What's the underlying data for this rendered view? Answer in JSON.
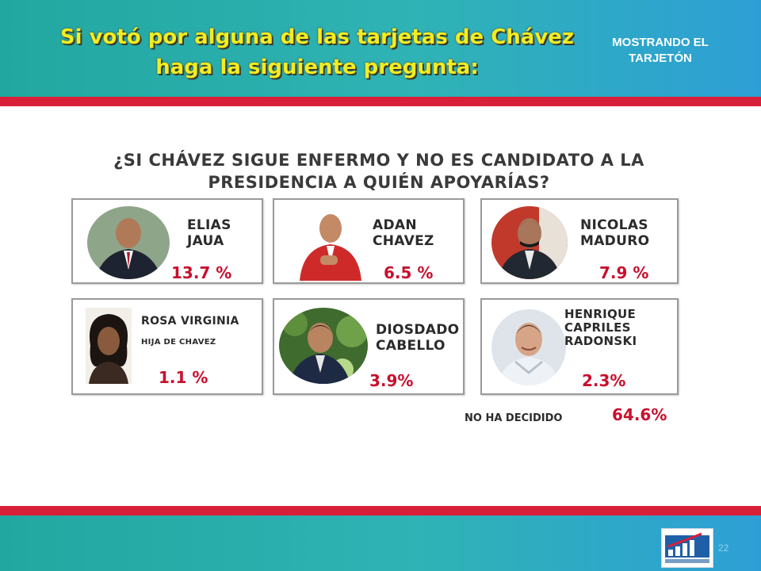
{
  "header": {
    "title": "Si votó por alguna de las tarjetas de Chávez haga la siguiente pregunta:",
    "badge": "MOSTRANDO EL TARJETÓN"
  },
  "question": "¿SI CHÁVEZ SIGUE ENFERMO Y NO ES CANDIDATO A LA PRESIDENCIA A QUIÉN APOYARÍAS?",
  "candidates": [
    {
      "name_line1": "ELIAS",
      "name_line2": "JAUA",
      "percent": "13.7 %"
    },
    {
      "name_line1": "ADAN",
      "name_line2": "CHAVEZ",
      "percent": "6.5 %"
    },
    {
      "name_line1": "NICOLAS",
      "name_line2": "MADURO",
      "percent": "7.9 %"
    },
    {
      "name_line1": "ROSA VIRGINIA",
      "name_line2": "HIJA DE CHAVEZ",
      "percent": "1.1 %"
    },
    {
      "name_line1": "DIOSDADO",
      "name_line2": "CABELLO",
      "percent": "3.9%"
    },
    {
      "name_line1": "HENRIQUE",
      "name_line2": "CAPRILES",
      "name_line3": "RADONSKI",
      "percent": "2.3%"
    }
  ],
  "undecided": {
    "label": "NO HA DECIDIDO",
    "percent": "64.6%"
  },
  "footer": {
    "slide_number": "22",
    "logo_icon": "pollster-logo-icon"
  },
  "colors": {
    "header": "#2fb3b5",
    "accent_red": "#d81f3a",
    "title_yellow": "#f2ec21",
    "percent_red": "#c8102e"
  }
}
